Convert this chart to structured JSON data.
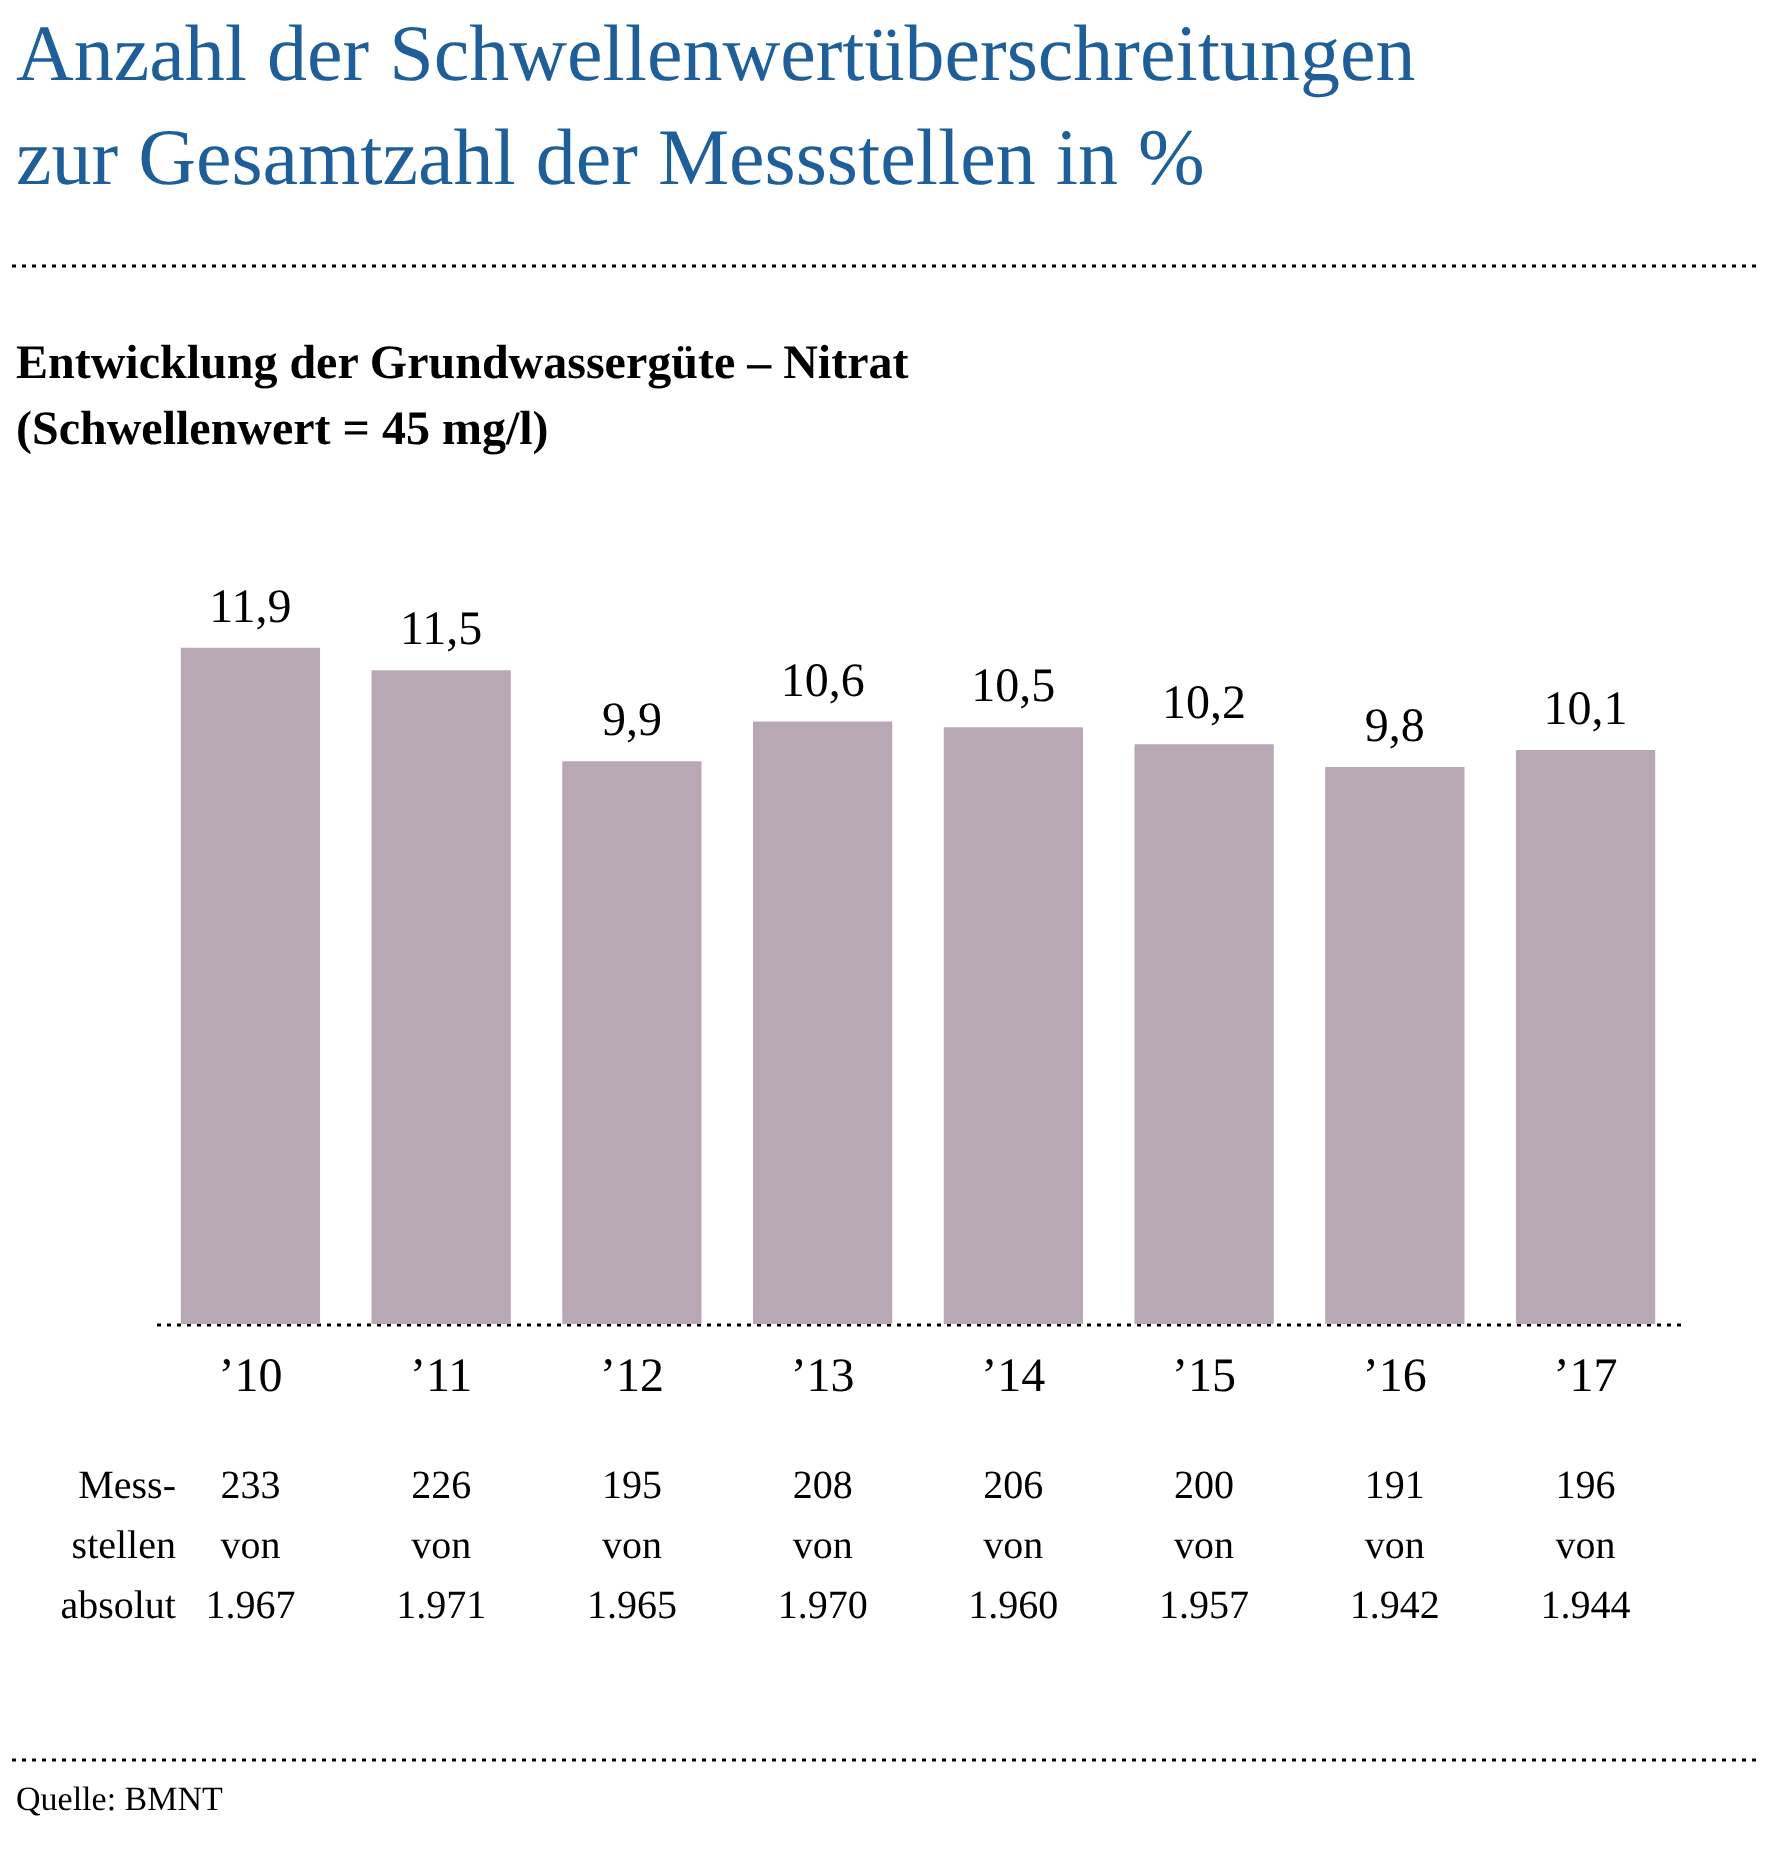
{
  "chart_data": {
    "type": "bar",
    "title": [
      "Anzahl der Schwellenwertüberschreitungen",
      "zur Gesamtzahl der Messstellen in %"
    ],
    "subtitle": [
      "Entwicklung der Grundwassergüte – Nitrat",
      "(Schwellenwert = 45 mg/l)"
    ],
    "categories": [
      "’10",
      "’11",
      "’12",
      "’13",
      "’14",
      "’15",
      "’16",
      "’17"
    ],
    "values": [
      11.9,
      11.5,
      9.9,
      10.6,
      10.5,
      10.2,
      9.8,
      10.1
    ],
    "value_labels": [
      "11,9",
      "11,5",
      "9,9",
      "10,6",
      "10,5",
      "10,2",
      "9,8",
      "10,1"
    ],
    "color": "#b8a8b6",
    "annotations": [
      "Mess- stellen absolut",
      "233 von 1.967",
      "226 von 1.971",
      "195 von 1.965",
      "208 von 1.970",
      "206 von 1.960",
      "200 von 1.957",
      "191 von 1.942",
      "196 von 1.944",
      "Quelle: BMNT"
    ]
  }
}
